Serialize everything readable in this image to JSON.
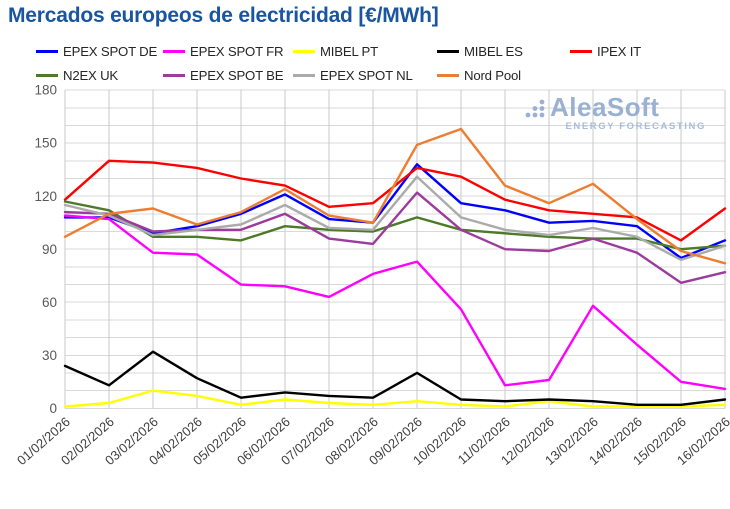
{
  "title": "Mercados europeos de electricidad [€/MWh]",
  "watermark": {
    "name": "AleaSoft",
    "tagline": "ENERGY FORECASTING"
  },
  "brand_colors": {
    "title_blue": "#1A55A0",
    "watermark_blue": "#8FA9CE"
  },
  "axis": {
    "y_tick_labels": [
      "0",
      "30",
      "60",
      "90",
      "120",
      "150",
      "180"
    ],
    "x_tick_labels": [
      "01/02/2026",
      "02/02/2026",
      "03/02/2026",
      "04/02/2026",
      "05/02/2026",
      "06/02/2026",
      "07/02/2026",
      "08/02/2026",
      "09/02/2026",
      "10/02/2026",
      "11/02/2026",
      "12/02/2026",
      "13/02/2026",
      "14/02/2026",
      "15/02/2026",
      "16/02/2026"
    ]
  },
  "chart_data": {
    "type": "line",
    "title": "Mercados europeos de electricidad [€/MWh]",
    "xlabel": "",
    "ylabel": "",
    "ylim": [
      0,
      180
    ],
    "ytick_interval": 30,
    "grid_minor_interval": 10,
    "grid": true,
    "legend_position": "top",
    "categories": [
      "01/02/2026",
      "02/02/2026",
      "03/02/2026",
      "04/02/2026",
      "05/02/2026",
      "06/02/2026",
      "07/02/2026",
      "08/02/2026",
      "09/02/2026",
      "10/02/2026",
      "11/02/2026",
      "12/02/2026",
      "13/02/2026",
      "14/02/2026",
      "15/02/2026",
      "16/02/2026"
    ],
    "series": [
      {
        "name": "EPEX SPOT DE",
        "color": "#0000FF",
        "values": [
          108,
          108,
          99,
          103,
          110,
          121,
          107,
          105,
          138,
          116,
          112,
          105,
          106,
          103,
          85,
          95
        ]
      },
      {
        "name": "EPEX SPOT FR",
        "color": "#FF00FF",
        "values": [
          109,
          107,
          88,
          87,
          70,
          69,
          63,
          76,
          83,
          56,
          13,
          16,
          58,
          36,
          15,
          11
        ]
      },
      {
        "name": "MIBEL PT",
        "color": "#FFFF00",
        "values": [
          1,
          3,
          10,
          7,
          2,
          5,
          3,
          2,
          4,
          2,
          1,
          4,
          1,
          1,
          1,
          2
        ]
      },
      {
        "name": "MIBEL ES",
        "color": "#000000",
        "values": [
          24,
          13,
          32,
          17,
          6,
          9,
          7,
          6,
          20,
          5,
          4,
          5,
          4,
          2,
          2,
          5
        ]
      },
      {
        "name": "IPEX IT",
        "color": "#FF0000",
        "values": [
          118,
          140,
          139,
          136,
          130,
          126,
          114,
          116,
          136,
          131,
          118,
          112,
          110,
          108,
          95,
          113
        ]
      },
      {
        "name": "N2EX UK",
        "color": "#4C7A28",
        "values": [
          117,
          112,
          97,
          97,
          95,
          103,
          101,
          100,
          108,
          101,
          99,
          97,
          96,
          96,
          90,
          92
        ]
      },
      {
        "name": "EPEX SPOT BE",
        "color": "#9C3B9C",
        "values": [
          111,
          110,
          100,
          101,
          101,
          110,
          96,
          93,
          122,
          101,
          90,
          89,
          96,
          88,
          71,
          77
        ]
      },
      {
        "name": "EPEX SPOT NL",
        "color": "#ABABAB",
        "values": [
          115,
          109,
          98,
          101,
          104,
          115,
          102,
          101,
          131,
          108,
          101,
          98,
          102,
          97,
          84,
          92
        ]
      },
      {
        "name": "Nord Pool",
        "color": "#ED7D31",
        "values": [
          97,
          110,
          113,
          104,
          111,
          124,
          109,
          105,
          149,
          158,
          126,
          116,
          127,
          107,
          89,
          82
        ]
      }
    ]
  }
}
